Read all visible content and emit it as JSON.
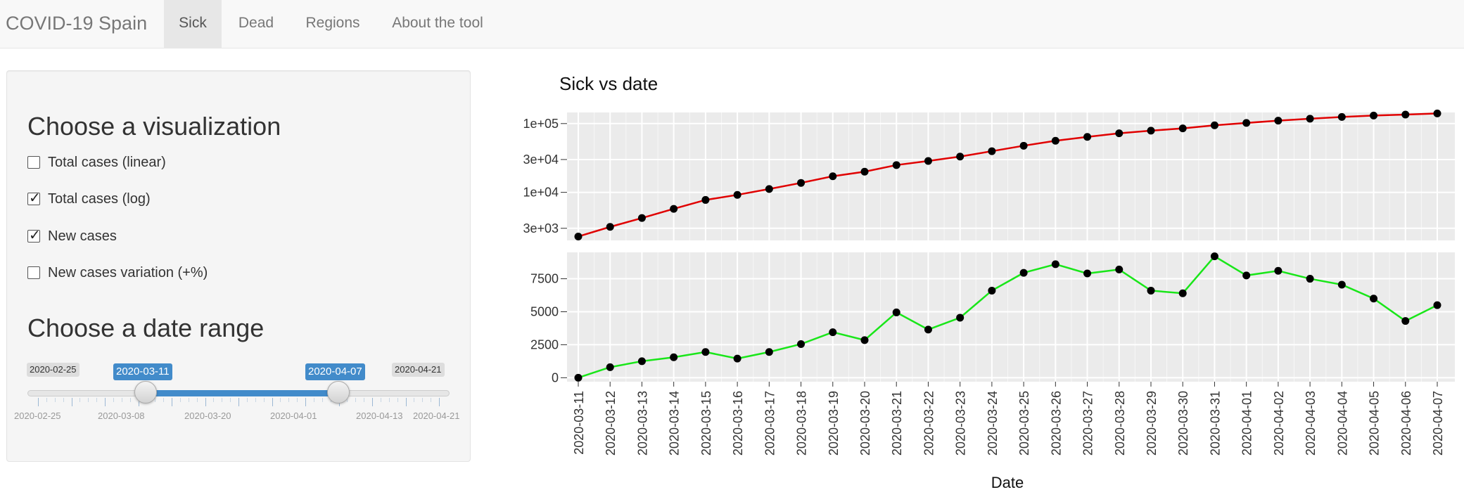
{
  "navbar": {
    "brand": "COVID-19 Spain",
    "tabs": [
      {
        "label": "Sick",
        "active": true
      },
      {
        "label": "Dead",
        "active": false
      },
      {
        "label": "Regions",
        "active": false
      },
      {
        "label": "About the tool",
        "active": false
      }
    ]
  },
  "sidebar": {
    "viz_title": "Choose a visualization",
    "options": [
      {
        "label": "Total cases (linear)",
        "checked": false
      },
      {
        "label": "Total cases (log)",
        "checked": true
      },
      {
        "label": "New cases",
        "checked": true
      },
      {
        "label": "New cases variation (+%)",
        "checked": false
      }
    ],
    "range_title": "Choose a date range",
    "slider": {
      "min": "2020-02-25",
      "max": "2020-04-21",
      "from": "2020-03-11",
      "to": "2020-04-07",
      "grid_labels": [
        "2020-02-25",
        "2020-03-08",
        "2020-03-20",
        "2020-04-01",
        "2020-04-13",
        "2020-04-21"
      ]
    }
  },
  "plot": {
    "title": "Sick vs date",
    "xlabel": "Date"
  },
  "chart_data": [
    {
      "type": "line",
      "scale": "log",
      "color": "#e00000",
      "yticks": [
        "3e+03",
        "1e+04",
        "3e+04",
        "1e+05"
      ],
      "grid": true,
      "x": [
        "2020-03-11",
        "2020-03-12",
        "2020-03-13",
        "2020-03-14",
        "2020-03-15",
        "2020-03-16",
        "2020-03-17",
        "2020-03-18",
        "2020-03-19",
        "2020-03-20",
        "2020-03-21",
        "2020-03-22",
        "2020-03-23",
        "2020-03-24",
        "2020-03-25",
        "2020-03-26",
        "2020-03-27",
        "2020-03-28",
        "2020-03-29",
        "2020-03-30",
        "2020-03-31",
        "2020-04-01",
        "2020-04-02",
        "2020-04-03",
        "2020-04-04",
        "2020-04-05",
        "2020-04-06",
        "2020-04-07"
      ],
      "values": [
        2277,
        3146,
        4231,
        5753,
        7753,
        9191,
        11178,
        13716,
        17147,
        19980,
        24926,
        28572,
        33089,
        39673,
        47610,
        56188,
        64059,
        72248,
        78797,
        85195,
        94417,
        102136,
        110238,
        117710,
        124736,
        130759,
        135032,
        140510
      ]
    },
    {
      "type": "line",
      "color": "#19e619",
      "ylim": [
        -300,
        9500
      ],
      "yticks": [
        0,
        2500,
        5000,
        7500
      ],
      "grid": true,
      "x": [
        "2020-03-11",
        "2020-03-12",
        "2020-03-13",
        "2020-03-14",
        "2020-03-15",
        "2020-03-16",
        "2020-03-17",
        "2020-03-18",
        "2020-03-19",
        "2020-03-20",
        "2020-03-21",
        "2020-03-22",
        "2020-03-23",
        "2020-03-24",
        "2020-03-25",
        "2020-03-26",
        "2020-03-27",
        "2020-03-28",
        "2020-03-29",
        "2020-03-30",
        "2020-03-31",
        "2020-04-01",
        "2020-04-02",
        "2020-04-03",
        "2020-04-04",
        "2020-04-05",
        "2020-04-06",
        "2020-04-07"
      ],
      "values": [
        0,
        800,
        1250,
        1550,
        1950,
        1450,
        1950,
        2550,
        3450,
        2850,
        4950,
        3650,
        4550,
        6600,
        7950,
        8600,
        7900,
        8200,
        6600,
        6400,
        9200,
        7750,
        8100,
        7500,
        7050,
        6000,
        4300,
        5500
      ]
    }
  ]
}
